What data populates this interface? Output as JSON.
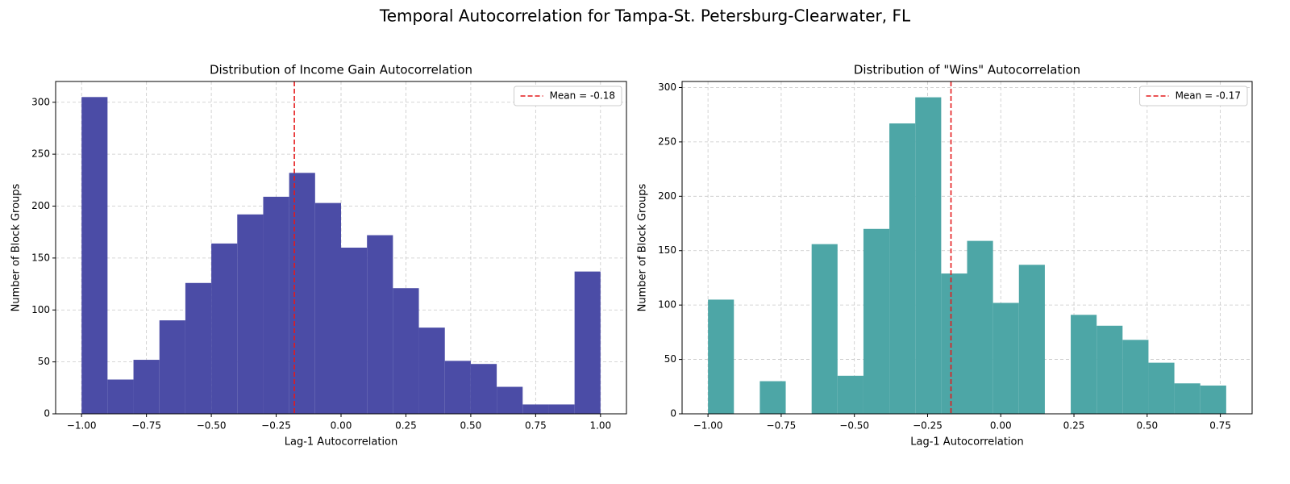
{
  "title": "Temporal Autocorrelation for Tampa-St. Petersburg-Clearwater, FL",
  "chart_data": [
    {
      "type": "histogram",
      "title": "Distribution of Income Gain Autocorrelation",
      "x_label": "Lag-1 Autocorrelation",
      "y_label": "Number of Block Groups",
      "color": "#4b4ca6",
      "bins": [
        -1.0,
        -0.9,
        -0.8,
        -0.7,
        -0.6,
        -0.5,
        -0.4,
        -0.3,
        -0.2,
        -0.1,
        0.0,
        0.1,
        0.2,
        0.3,
        0.4,
        0.5,
        0.6,
        0.7,
        0.8,
        0.9,
        1.0
      ],
      "counts": [
        305,
        33,
        52,
        90,
        126,
        164,
        192,
        209,
        232,
        203,
        160,
        172,
        121,
        83,
        51,
        48,
        26,
        9,
        9,
        137
      ],
      "mean_line": {
        "value": -0.18,
        "label": "Mean = -0.18",
        "color": "#e41a1c"
      },
      "legend": "upper right",
      "grid": true,
      "xlim": [
        -1.1,
        1.1
      ],
      "xticks": [
        {
          "value": -1.0,
          "label": "−1.00"
        },
        {
          "value": -0.75,
          "label": "−0.75"
        },
        {
          "value": -0.5,
          "label": "−0.50"
        },
        {
          "value": -0.25,
          "label": "−0.25"
        },
        {
          "value": 0.0,
          "label": "0.00"
        },
        {
          "value": 0.25,
          "label": "0.25"
        },
        {
          "value": 0.5,
          "label": "0.50"
        },
        {
          "value": 0.75,
          "label": "0.75"
        },
        {
          "value": 1.0,
          "label": "1.00"
        }
      ],
      "ylim": [
        0,
        320
      ],
      "yticks": [
        0,
        50,
        100,
        150,
        200,
        250,
        300
      ]
    },
    {
      "type": "histogram",
      "title": "Distribution of \"Wins\" Autocorrelation",
      "x_label": "Lag-1 Autocorrelation",
      "y_label": "Number of Block Groups",
      "color": "#4da6a6",
      "bins": [
        -1.0,
        -0.9115,
        -0.823,
        -0.7345,
        -0.646,
        -0.5575,
        -0.469,
        -0.3805,
        -0.292,
        -0.2035,
        -0.115,
        -0.0265,
        0.062,
        0.1505,
        0.239,
        0.3275,
        0.416,
        0.5045,
        0.593,
        0.6815,
        0.77
      ],
      "counts": [
        105,
        0,
        30,
        0,
        156,
        35,
        170,
        267,
        291,
        129,
        159,
        102,
        137,
        0,
        91,
        81,
        68,
        47,
        28,
        26
      ],
      "mean_line": {
        "value": -0.17,
        "label": "Mean = -0.17",
        "color": "#e41a1c"
      },
      "legend": "upper right",
      "grid": true,
      "xlim": [
        -1.0885,
        0.8585
      ],
      "xticks": [
        {
          "value": -1.0,
          "label": "−1.00"
        },
        {
          "value": -0.75,
          "label": "−0.75"
        },
        {
          "value": -0.5,
          "label": "−0.50"
        },
        {
          "value": -0.25,
          "label": "−0.25"
        },
        {
          "value": 0.0,
          "label": "0.00"
        },
        {
          "value": 0.25,
          "label": "0.25"
        },
        {
          "value": 0.5,
          "label": "0.50"
        },
        {
          "value": 0.75,
          "label": "0.75"
        }
      ],
      "ylim": [
        0,
        305.55
      ],
      "yticks": [
        0,
        50,
        100,
        150,
        200,
        250,
        300
      ]
    }
  ]
}
